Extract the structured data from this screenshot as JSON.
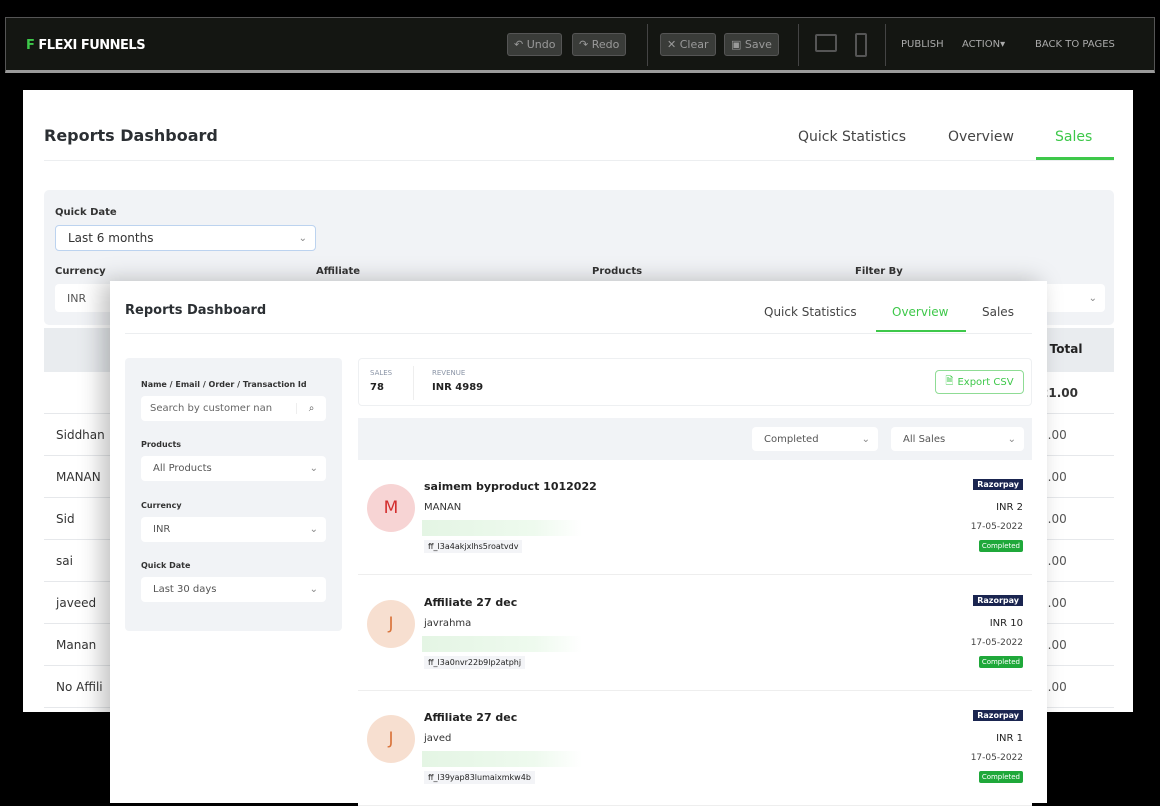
{
  "topbar": {
    "logo_icon": "flexi-f-logo",
    "logo_text": "FLEXI FUNNELS",
    "undo": "Undo",
    "redo": "Redo",
    "clear": "Clear",
    "save": "Save",
    "publish": "PUBLISH",
    "action": "ACTION",
    "back": "BACK TO PAGES"
  },
  "back": {
    "title": "Reports Dashboard",
    "tabs": [
      "Quick Statistics",
      "Overview",
      "Sales"
    ],
    "active_tab": "Sales",
    "quick_date_label": "Quick Date",
    "quick_date_value": "Last 6 months",
    "currency_label": "Currency",
    "currency_value": "INR",
    "affiliate_label": "Affiliate",
    "products_label": "Products",
    "filter_by_label": "Filter By",
    "total_header": ") Total",
    "rows": [
      {
        "name": "",
        "total": "21.00"
      },
      {
        "name": "Siddhan",
        "total": "3.00"
      },
      {
        "name": "MANAN",
        "total": "0.00"
      },
      {
        "name": "Sid",
        "total": "0.00"
      },
      {
        "name": "sai",
        "total": "0.00"
      },
      {
        "name": "javeed",
        "total": "0.00"
      },
      {
        "name": "Manan",
        "total": "0.00"
      },
      {
        "name": "No Affili",
        "total": "3.00"
      }
    ]
  },
  "front": {
    "title": "Reports Dashboard",
    "tabs": [
      "Quick Statistics",
      "Overview",
      "Sales"
    ],
    "active_tab": "Overview",
    "filters": {
      "search_label": "Name / Email / Order / Transaction Id",
      "search_placeholder": "Search by customer nan",
      "products_label": "Products",
      "products_value": "All Products",
      "currency_label": "Currency",
      "currency_value": "INR",
      "quick_date_label": "Quick Date",
      "quick_date_value": "Last 30 days"
    },
    "stats": {
      "sales_label": "SALES",
      "sales_value": "78",
      "revenue_label": "REVENUE",
      "revenue_value": "INR 4989",
      "export": "Export CSV"
    },
    "status_filter": "Completed",
    "type_filter": "All Sales",
    "sales": [
      {
        "initial": "M",
        "product": "saimem byproduct 1012022",
        "customer": "MANAN",
        "txid": "ff_l3a4akjxlhs5roatvdv",
        "gateway": "Razorpay",
        "amount": "INR 2",
        "date": "17-05-2022",
        "status": "Completed",
        "bg": "#f7d4d4",
        "fg": "#d32f2f"
      },
      {
        "initial": "J",
        "product": "Affiliate 27 dec",
        "customer": "javrahma",
        "txid": "ff_l3a0nvr22b9lp2atphj",
        "gateway": "Razorpay",
        "amount": "INR 10",
        "date": "17-05-2022",
        "status": "Completed",
        "bg": "#f7dfd0",
        "fg": "#d9733a"
      },
      {
        "initial": "J",
        "product": "Affiliate 27 dec",
        "customer": "javed",
        "txid": "ff_l39yap83lumaixmkw4b",
        "gateway": "Razorpay",
        "amount": "INR 1",
        "date": "17-05-2022",
        "status": "Completed",
        "bg": "#f7dfd0",
        "fg": "#d9733a"
      }
    ]
  },
  "colors": {
    "accent": "#3ec84a",
    "topbar": "#141612",
    "razorpay": "#1a2550",
    "completed": "#1fa83a"
  }
}
